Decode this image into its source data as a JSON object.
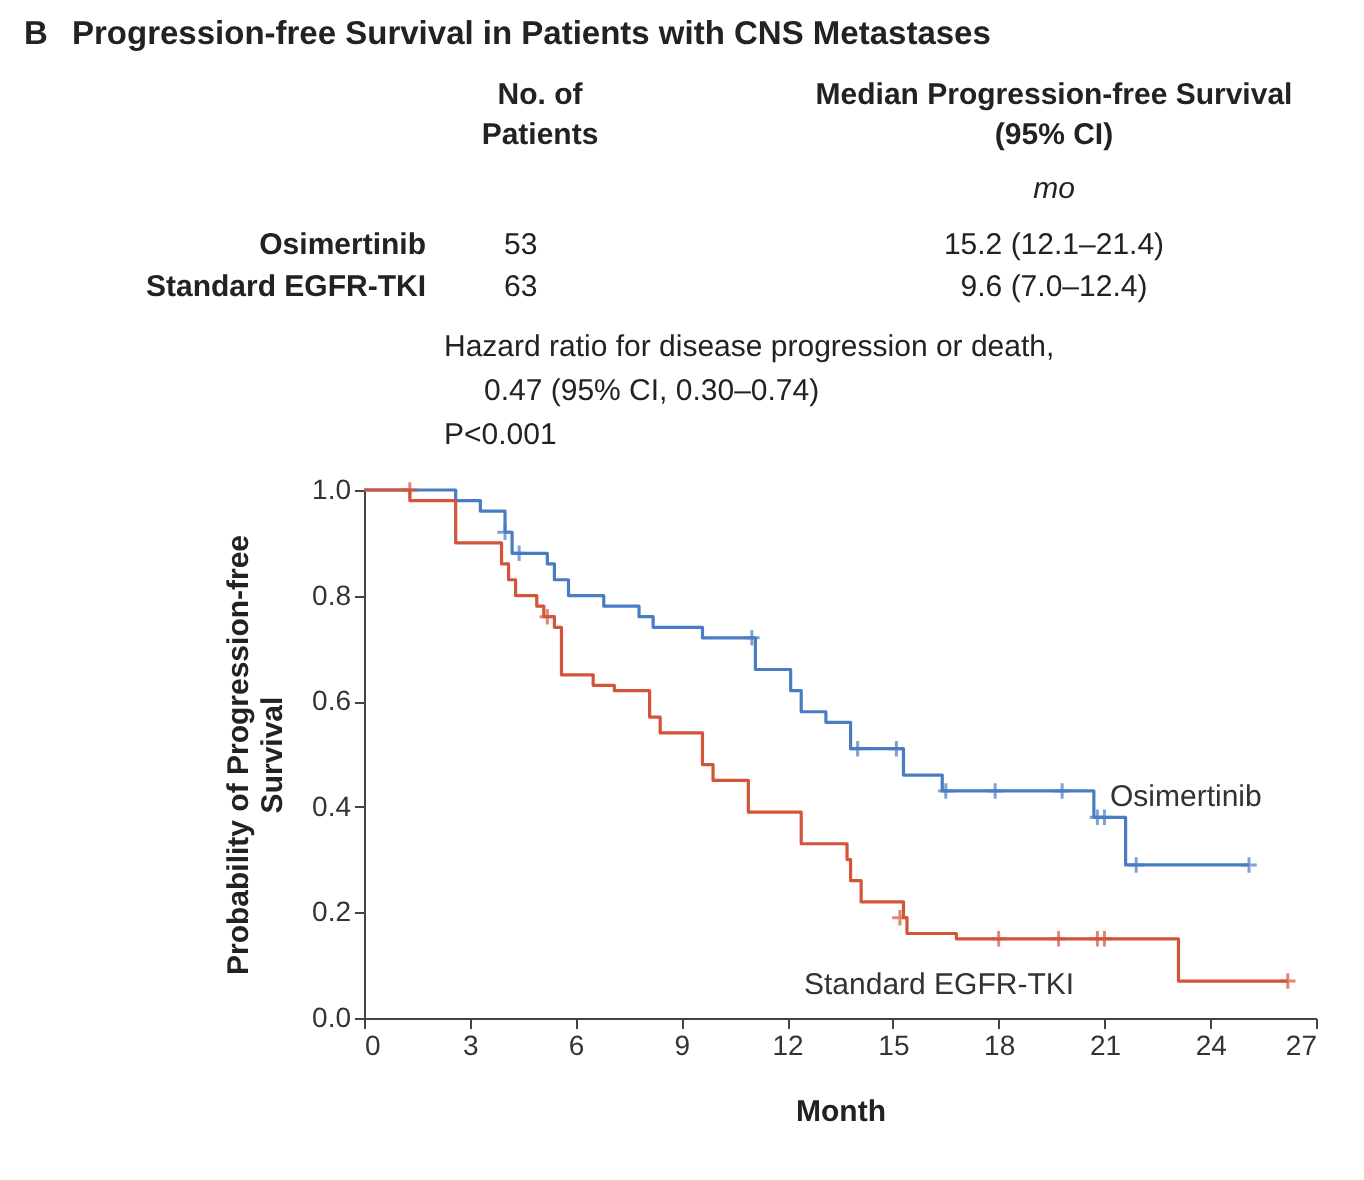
{
  "chart_data": {
    "type": "step",
    "title": "Progression-free Survival in Patients with CNS Metastases",
    "xlabel": "Month",
    "ylabel": "Probability of Progression-free Survival",
    "annotations": [
      "B",
      "No. of",
      "Patients",
      "Median Progression-free Survival",
      "(95% CI)",
      "mo",
      "Osimertinib",
      "Standard EGFR-TKI",
      "53",
      "63",
      "15.2 (12.1–21.4)",
      "9.6 (7.0–12.4)",
      "Hazard ratio for disease progression or death,",
      "0.47 (95% CI, 0.30–0.74)",
      "P<0.001"
    ],
    "xlim": [
      0,
      27
    ],
    "xticks": [
      0,
      3,
      6,
      9,
      12,
      15,
      18,
      21,
      24,
      27
    ],
    "ylim": [
      0,
      1
    ],
    "yticks": [
      {
        "value": 0,
        "label": "0.0"
      },
      {
        "value": 0.2,
        "label": "0.2"
      },
      {
        "value": 0.4,
        "label": "0.4"
      },
      {
        "value": 0.6,
        "label": "0.6"
      },
      {
        "value": 0.8,
        "label": "0.8"
      },
      {
        "value": 1,
        "label": "1.0"
      }
    ],
    "grid": false,
    "line_style": "solid",
    "series": [
      {
        "name": "Osimertinib",
        "color": "#4a7cc4",
        "x": [
          0,
          2.6,
          3.3,
          4.0,
          4.2,
          5.2,
          5.4,
          5.8,
          6.8,
          7.8,
          8.2,
          9.6,
          11.1,
          12.1,
          12.4,
          13.1,
          13.8,
          15.3,
          16.4,
          20.7,
          21.6,
          25.1
        ],
        "values": [
          1.0,
          0.98,
          0.96,
          0.92,
          0.88,
          0.86,
          0.83,
          0.8,
          0.78,
          0.76,
          0.74,
          0.72,
          0.66,
          0.62,
          0.58,
          0.56,
          0.51,
          0.46,
          0.43,
          0.38,
          0.29,
          0.29
        ]
      },
      {
        "name": "Standard EGFR-TKI",
        "color": "#d2553a",
        "x": [
          0,
          1.3,
          2.6,
          3.9,
          4.1,
          4.3,
          4.9,
          5.1,
          5.4,
          5.6,
          6.5,
          7.1,
          8.1,
          8.4,
          9.6,
          9.9,
          10.9,
          12.4,
          13.7,
          13.8,
          14.1,
          15.3,
          15.4,
          16.8,
          23.1,
          26.2
        ],
        "values": [
          1.0,
          0.98,
          0.9,
          0.86,
          0.83,
          0.8,
          0.78,
          0.76,
          0.74,
          0.65,
          0.63,
          0.62,
          0.57,
          0.54,
          0.48,
          0.45,
          0.39,
          0.33,
          0.3,
          0.26,
          0.22,
          0.19,
          0.16,
          0.15,
          0.07,
          0.07
        ]
      },
      {
        "color": "#4a7cc4",
        "type": "scatter",
        "marker": "cross",
        "x": [
          4.0,
          4.4,
          11.0,
          14.0,
          15.1,
          16.5,
          17.9,
          19.8,
          20.8,
          21.0,
          21.9,
          25.1
        ],
        "values": [
          0.92,
          0.88,
          0.72,
          0.51,
          0.51,
          0.43,
          0.43,
          0.43,
          0.38,
          0.38,
          0.29,
          0.29
        ]
      },
      {
        "color": "#d2553a",
        "type": "scatter",
        "marker": "cross",
        "x": [
          1.3,
          5.2,
          15.2,
          18.0,
          19.7,
          20.8,
          21.0,
          26.2
        ],
        "values": [
          1.0,
          0.76,
          0.19,
          0.15,
          0.15,
          0.15,
          0.15,
          0.07
        ]
      }
    ]
  }
}
